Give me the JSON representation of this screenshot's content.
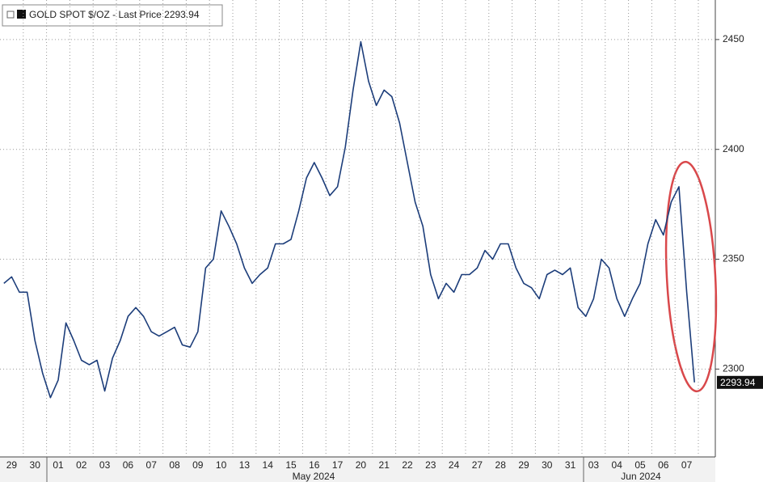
{
  "chart_data": {
    "type": "line",
    "categories": [
      null,
      "29",
      null,
      null,
      "30",
      null,
      null,
      "01",
      null,
      null,
      "02",
      null,
      null,
      "03",
      null,
      null,
      "06",
      null,
      null,
      "07",
      null,
      null,
      "08",
      null,
      null,
      "09",
      null,
      null,
      "10",
      null,
      null,
      "13",
      null,
      null,
      "14",
      null,
      null,
      "15",
      null,
      null,
      "16",
      null,
      null,
      "17",
      null,
      null,
      "20",
      null,
      null,
      "21",
      null,
      null,
      "22",
      null,
      null,
      "23",
      null,
      null,
      "24",
      null,
      null,
      "27",
      null,
      null,
      "28",
      null,
      null,
      "29",
      null,
      null,
      "30",
      null,
      null,
      "31",
      null,
      null,
      "03",
      null,
      null,
      "04",
      null,
      null,
      "05",
      null,
      null,
      "06",
      null,
      null,
      "07",
      null
    ],
    "month_labels": [
      "May 2024",
      "Jun 2024"
    ],
    "series": [
      {
        "name": "GOLD SPOT $/OZ - Last Price 2293.94",
        "color": "#1c3d7a",
        "values": [
          2339,
          2342,
          2335,
          2335,
          2313,
          2298,
          2287,
          2295,
          2321,
          2313,
          2304,
          2302,
          2304,
          2290,
          2305,
          2313,
          2324,
          2328,
          2324,
          2317,
          2315,
          2317,
          2319,
          2311,
          2310,
          2317,
          2346,
          2350,
          2372,
          2365,
          2357,
          2346,
          2339,
          2343,
          2346,
          2357,
          2357,
          2359,
          2372,
          2387,
          2394,
          2387,
          2379,
          2383,
          2401,
          2427,
          2449,
          2431,
          2420,
          2427,
          2424,
          2412,
          2394,
          2376,
          2365,
          2343,
          2332,
          2339,
          2335,
          2343,
          2343,
          2346,
          2354,
          2350,
          2357,
          2357,
          2346,
          2339,
          2337,
          2332,
          2343,
          2345,
          2343,
          2346,
          2328,
          2324,
          2332,
          2350,
          2346,
          2332,
          2324,
          2332,
          2339,
          2357,
          2368,
          2361,
          2376,
          2383,
          2335,
          2293.94
        ]
      }
    ],
    "last_price": 2293.94,
    "ylim": [
      2260,
      2468
    ],
    "yticks": [
      2300,
      2350,
      2400,
      2450
    ],
    "grid": true
  }
}
